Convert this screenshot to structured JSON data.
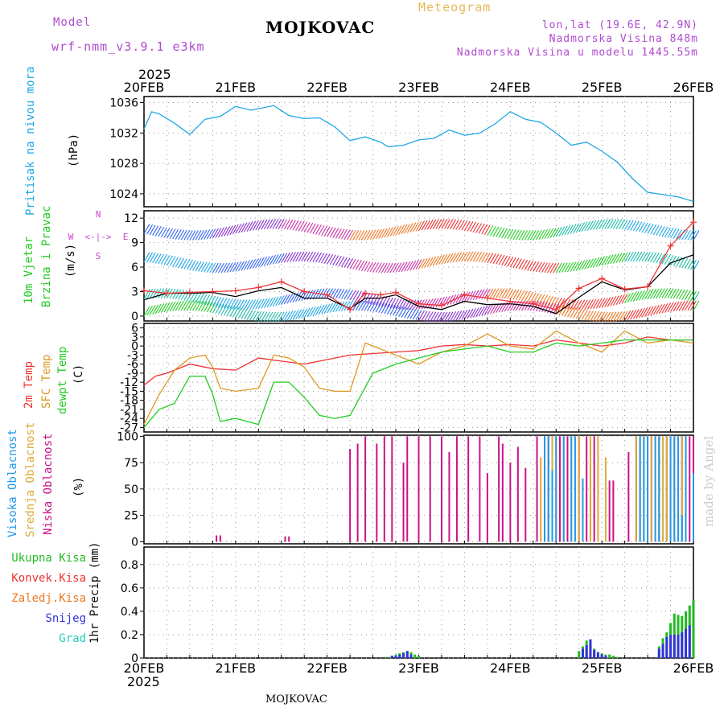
{
  "header": {
    "model_label": "Model",
    "model_name": "wrf-nmm_v3.9.1  e3km",
    "location": "MOJKOVAC",
    "meteogram": "Meteogram",
    "lonlat": "lon,lat (19.6E, 42.9N)",
    "altitude": "Nadmorska Visina 848m",
    "model_altitude": "Nadmorska Visina u modelu 1445.55m",
    "footer_location": "MOJKOVAC",
    "credit": "made by Angel",
    "year_top": "2025",
    "year_bottom": "2025"
  },
  "colors": {
    "pressure": "#1fa7e6",
    "wind10m": "#22cc22",
    "brzina": "#22cc22",
    "temp2m": "#ee3333",
    "sfc": "#dd9922",
    "dew": "#22cc22",
    "visoka": "#2299ee",
    "srednja": "#ddaa33",
    "niska": "#cc1188",
    "kisa": "#22bb22",
    "konv": "#ee3333",
    "zaledj": "#ee7722",
    "snijeg": "#3333dd",
    "grad": "#22ccbb",
    "compass": "#cc44cc"
  },
  "chart_data": {
    "type": "meteogram",
    "x_dates": [
      "20FEB",
      "21FEB",
      "22FEB",
      "23FEB",
      "24FEB",
      "25FEB",
      "26FEB"
    ],
    "x_range_hours": [
      0,
      144
    ],
    "panels": [
      {
        "id": "pressure",
        "type": "line",
        "ylabel": [
          "Pritisak na nivou mora",
          "(hPa)"
        ],
        "yticks": [
          1024,
          1028,
          1032,
          1036
        ],
        "ylim": [
          1022.3,
          1036.8
        ],
        "series": [
          {
            "name": "Pritisak na nivou mora",
            "color_key": "pressure",
            "x": [
              0,
              2,
              4,
              8,
              12,
              16,
              20,
              24,
              28,
              34,
              38,
              42,
              46,
              50,
              54,
              58,
              62,
              64,
              68,
              72,
              76,
              80,
              84,
              88,
              92,
              96,
              100,
              104,
              108,
              112,
              116,
              120,
              124,
              128,
              132,
              136,
              140,
              144
            ],
            "values": [
              1032.5,
              1034.8,
              1034.5,
              1033.3,
              1031.8,
              1033.8,
              1034.2,
              1035.5,
              1035.0,
              1035.6,
              1034.3,
              1033.9,
              1034.0,
              1032.8,
              1031.0,
              1031.5,
              1030.8,
              1030.2,
              1030.4,
              1031.1,
              1031.3,
              1032.4,
              1031.7,
              1032.0,
              1033.2,
              1034.8,
              1033.8,
              1033.4,
              1032.0,
              1030.4,
              1030.8,
              1029.6,
              1028.2,
              1026.0,
              1024.2,
              1023.9,
              1023.6,
              1023.0
            ]
          }
        ]
      },
      {
        "id": "wind",
        "type": "line",
        "ylabel": [
          "10m Vjetar",
          "Brzina i Pravac",
          "(m/s)"
        ],
        "yticks": [
          0,
          3,
          6,
          9,
          12
        ],
        "ylim": [
          -0.6,
          12.9
        ],
        "compass": {
          "n": "N",
          "s": "S",
          "e": "E",
          "w": "W",
          "arrows": "<-|->"
        },
        "barb_levels": [
          0,
          1.5,
          6,
          10
        ],
        "series": [
          {
            "name": "Brzina (srednja)",
            "color": "#000000",
            "x": [
              0,
              6,
              12,
              18,
              24,
              30,
              36,
              42,
              48,
              54,
              58,
              62,
              66,
              72,
              78,
              84,
              90,
              96,
              102,
              108,
              114,
              120,
              126,
              132,
              138,
              144
            ],
            "values": [
              2.0,
              2.8,
              2.8,
              2.9,
              2.4,
              3.1,
              3.5,
              2.2,
              2.2,
              0.9,
              2.2,
              2.2,
              2.6,
              1.2,
              0.8,
              1.8,
              1.4,
              1.5,
              1.2,
              0.3,
              2.3,
              4.2,
              3.2,
              3.6,
              6.5,
              7.5
            ]
          },
          {
            "name": "Udari (max)",
            "color": "#ee3333",
            "x": [
              0,
              6,
              12,
              18,
              24,
              30,
              36,
              42,
              48,
              54,
              58,
              62,
              66,
              72,
              78,
              84,
              90,
              96,
              102,
              108,
              114,
              120,
              126,
              132,
              138,
              144
            ],
            "values": [
              3.1,
              2.8,
              2.9,
              3.0,
              3.1,
              3.5,
              4.2,
              3.0,
              2.6,
              0.8,
              2.8,
              2.6,
              2.9,
              1.5,
              1.3,
              2.6,
              2.2,
              1.8,
              1.5,
              0.8,
              3.4,
              4.6,
              3.3,
              3.6,
              8.6,
              11.5
            ]
          }
        ]
      },
      {
        "id": "temperature",
        "type": "line",
        "ylabel": [
          "2m Temp",
          "SFC Temp",
          "dewpt Temp",
          "(C)"
        ],
        "yticks": [
          6,
          3,
          0,
          -3,
          -6,
          -9,
          -12,
          -15,
          -18,
          -21,
          -24,
          -27
        ],
        "ylim": [
          -28.5,
          7.5
        ],
        "series": [
          {
            "name": "2m Temp",
            "color_key": "temp2m",
            "x": [
              0,
              3,
              6,
              12,
              18,
              24,
              30,
              36,
              42,
              48,
              54,
              60,
              66,
              72,
              78,
              84,
              90,
              96,
              102,
              108,
              114,
              120,
              126,
              132,
              138,
              144
            ],
            "values": [
              -13,
              -10,
              -9,
              -6,
              -7.5,
              -8,
              -4,
              -5,
              -6,
              -4.5,
              -3,
              -2.5,
              -2,
              -1.5,
              0,
              0.5,
              0,
              0.5,
              0,
              2,
              1,
              0,
              1,
              3,
              2,
              2
            ]
          },
          {
            "name": "SFC Temp",
            "color_key": "sfc",
            "x": [
              0,
              4,
              8,
              12,
              16,
              18,
              20,
              24,
              30,
              34,
              38,
              42,
              46,
              50,
              54,
              58,
              62,
              66,
              72,
              78,
              84,
              90,
              96,
              102,
              108,
              114,
              120,
              126,
              132,
              138,
              144
            ],
            "values": [
              -26,
              -16,
              -8,
              -4,
              -3,
              -7,
              -14,
              -15,
              -14,
              -3,
              -4,
              -7,
              -14,
              -15,
              -15,
              1,
              -1,
              -3,
              -6,
              -2,
              0,
              4,
              0,
              -1,
              5,
              1,
              -2,
              5,
              1,
              2,
              1
            ]
          },
          {
            "name": "dewpt Temp",
            "color_key": "dew",
            "x": [
              0,
              4,
              8,
              12,
              16,
              18,
              20,
              24,
              30,
              34,
              38,
              42,
              46,
              50,
              54,
              60,
              66,
              72,
              78,
              84,
              90,
              96,
              102,
              108,
              114,
              120,
              126,
              132,
              138,
              144
            ],
            "values": [
              -27,
              -21,
              -19,
              -10,
              -10,
              -16,
              -25,
              -24,
              -26,
              -12,
              -12,
              -17,
              -23,
              -24,
              -23,
              -9,
              -6,
              -4,
              -2,
              -1,
              0,
              -2,
              -2,
              1,
              0,
              1,
              2,
              2,
              2,
              2
            ]
          }
        ]
      },
      {
        "id": "clouds",
        "type": "bar",
        "ylabel": [
          "Visoka Oblacnost",
          "Srednja Oblacnost",
          "Niska Oblacnost",
          "(%)"
        ],
        "yticks": [
          0,
          25,
          50,
          75,
          100
        ],
        "ylim": [
          -2,
          101
        ],
        "series": [
          {
            "name": "Niska Oblacnost",
            "color_key": "niska",
            "x": [
              19,
              20,
              37,
              38,
              54,
              56,
              58,
              61,
              63,
              65,
              68,
              69,
              72,
              75,
              78,
              80,
              82,
              85,
              88,
              90,
              93,
              94,
              96,
              98,
              100,
              103,
              105,
              106,
              107,
              109,
              111,
              114,
              116,
              118,
              122,
              123,
              127,
              129,
              130,
              133,
              135,
              137,
              138,
              140,
              141,
              142,
              143,
              144
            ],
            "values": [
              6,
              6,
              5,
              5,
              88,
              93,
              100,
              93,
              100,
              100,
              75,
              100,
              100,
              100,
              100,
              85,
              100,
              100,
              100,
              65,
              100,
              93,
              75,
              90,
              70,
              100,
              100,
              100,
              100,
              100,
              100,
              100,
              100,
              100,
              58,
              58,
              85,
              100,
              100,
              100,
              100,
              100,
              100,
              100,
              100,
              100,
              100,
              100
            ]
          },
          {
            "name": "Srednja Oblacnost",
            "color_key": "srednja",
            "x": [
              104,
              106,
              107,
              108,
              110,
              112,
              114,
              117,
              119,
              121,
              129,
              130,
              131,
              132,
              133,
              134,
              135,
              136,
              137,
              139,
              140,
              141
            ],
            "values": [
              80,
              100,
              100,
              100,
              100,
              100,
              100,
              100,
              100,
              80,
              100,
              100,
              100,
              100,
              100,
              100,
              100,
              100,
              100,
              100,
              100,
              100
            ]
          },
          {
            "name": "Visoka Oblacnost",
            "color_key": "visoka",
            "x": [
              105,
              106,
              107,
              108,
              110,
              112,
              113,
              115,
              130,
              131,
              132,
              134,
              135,
              138,
              139,
              140,
              141,
              142,
              144
            ],
            "values": [
              100,
              100,
              68,
              100,
              100,
              100,
              100,
              60,
              100,
              100,
              100,
              100,
              100,
              100,
              100,
              100,
              25,
              100,
              65
            ]
          }
        ]
      },
      {
        "id": "precip",
        "type": "bar",
        "ylabel": [
          "1hr Precip (mm)"
        ],
        "legend": [
          "Ukupna Kisa",
          "Konvek.Kisa",
          "Zaledj.Kisa",
          "Snijeg",
          "Grad"
        ],
        "yticks": [
          0,
          0.2,
          0.4,
          0.6,
          0.8
        ],
        "ylim": [
          0,
          0.95
        ],
        "series": [
          {
            "name": "Ukupna Kisa",
            "color_key": "kisa",
            "x": [
              64,
              65,
              66,
              67,
              68,
              69,
              70,
              71,
              72,
              114,
              115,
              116,
              117,
              118,
              119,
              120,
              121,
              122,
              123,
              124,
              135,
              136,
              137,
              138,
              139,
              140,
              141,
              142,
              143,
              144
            ],
            "values": [
              0.01,
              0.02,
              0.03,
              0.04,
              0.05,
              0.06,
              0.05,
              0.03,
              0.02,
              0.06,
              0.1,
              0.15,
              0.12,
              0.08,
              0.05,
              0.04,
              0.03,
              0.03,
              0.02,
              0.01,
              0.1,
              0.17,
              0.22,
              0.3,
              0.38,
              0.37,
              0.36,
              0.4,
              0.45,
              0.5
            ]
          },
          {
            "name": "Snijeg",
            "color_key": "snijeg",
            "x": [
              65,
              66,
              67,
              68,
              69,
              70,
              115,
              116,
              117,
              118,
              119,
              120,
              121,
              135,
              136,
              137,
              138,
              139,
              140,
              141,
              142,
              143
            ],
            "values": [
              0.02,
              0.02,
              0.03,
              0.04,
              0.06,
              0.03,
              0.08,
              0.11,
              0.16,
              0.07,
              0.05,
              0.03,
              0.02,
              0.08,
              0.12,
              0.18,
              0.2,
              0.2,
              0.2,
              0.22,
              0.25,
              0.28
            ]
          }
        ]
      }
    ]
  }
}
